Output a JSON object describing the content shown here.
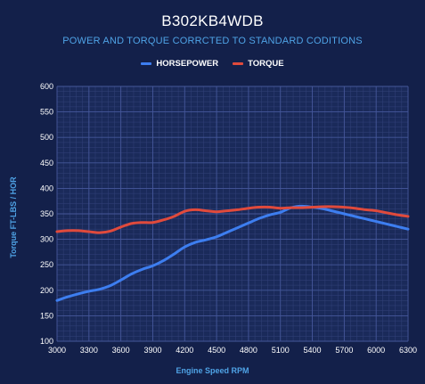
{
  "chart_data": {
    "type": "line",
    "title": "B302KB4WDB",
    "subtitle": "POWER AND TORQUE CORRCTED TO STANDARD CODITIONS",
    "xlabel": "Engine Speed RPM",
    "ylabel": "Torque FT-LBS / HOR",
    "xlim": [
      3000,
      6300
    ],
    "ylim": [
      100,
      600
    ],
    "x_ticks": [
      3000,
      3300,
      3600,
      3900,
      4200,
      4500,
      4800,
      5100,
      5400,
      5700,
      6000,
      6300
    ],
    "y_ticks": [
      100,
      150,
      200,
      250,
      300,
      350,
      400,
      450,
      500,
      550,
      600
    ],
    "grid": true,
    "legend_position": "top",
    "series": [
      {
        "name": "HORSEPOWER",
        "color": "#3d7ef0",
        "x": [
          3000,
          3100,
          3200,
          3300,
          3400,
          3500,
          3600,
          3700,
          3800,
          3900,
          4000,
          4100,
          4200,
          4300,
          4400,
          4500,
          4600,
          4700,
          4800,
          4900,
          5000,
          5100,
          5200,
          5300,
          5400,
          5500,
          5600,
          5700,
          5800,
          5900,
          6000,
          6100,
          6200,
          6300
        ],
        "values": [
          180,
          187,
          193,
          198,
          202,
          209,
          220,
          232,
          241,
          248,
          258,
          271,
          285,
          294,
          299,
          305,
          314,
          323,
          332,
          341,
          348,
          353,
          362,
          365,
          363,
          360,
          355,
          350,
          345,
          340,
          335,
          330,
          325,
          320
        ]
      },
      {
        "name": "TORQUE",
        "color": "#e04a3c",
        "x": [
          3000,
          3100,
          3200,
          3300,
          3400,
          3500,
          3600,
          3700,
          3800,
          3900,
          4000,
          4100,
          4200,
          4300,
          4400,
          4500,
          4600,
          4700,
          4800,
          4900,
          5000,
          5100,
          5200,
          5300,
          5400,
          5500,
          5600,
          5700,
          5800,
          5900,
          6000,
          6100,
          6200,
          6300
        ],
        "values": [
          315,
          317,
          317,
          315,
          313,
          316,
          324,
          331,
          333,
          333,
          338,
          345,
          355,
          358,
          356,
          354,
          356,
          358,
          361,
          363,
          363,
          361,
          362,
          362,
          363,
          364,
          364,
          363,
          361,
          358,
          356,
          352,
          348,
          345
        ]
      }
    ]
  },
  "colors": {
    "background": "#13204a",
    "grid": "#33427a",
    "label_accent": "#4fa3e6"
  }
}
